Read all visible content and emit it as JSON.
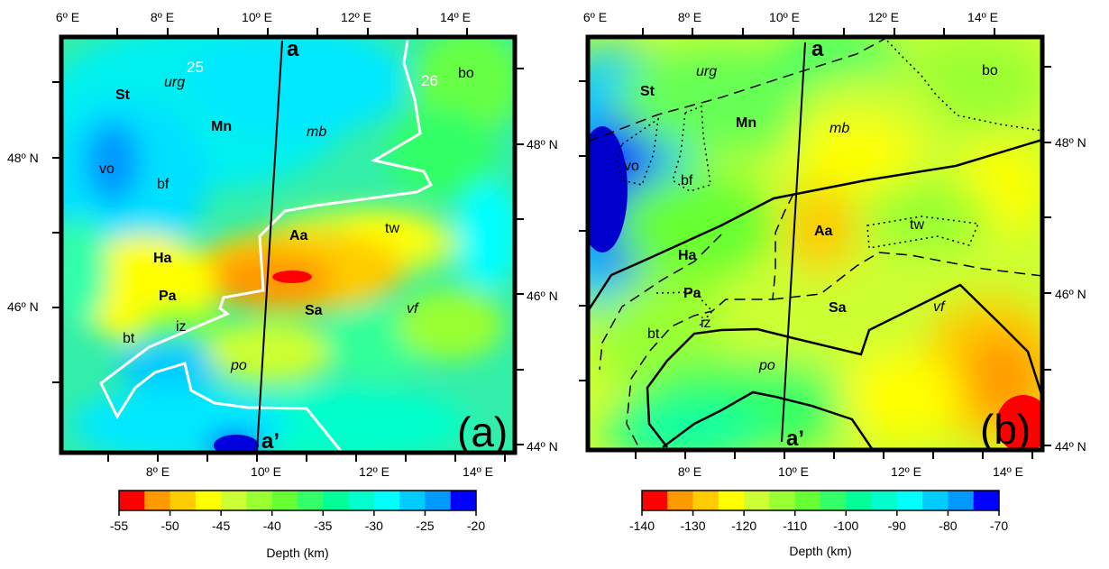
{
  "panels": [
    {
      "id": "a",
      "panel_label": "(a)",
      "lon_ticks_top": [
        "6º E",
        "8º E",
        "10º E",
        "12º E",
        "14º E"
      ],
      "lon_ticks_bottom": [
        "8º E",
        "10º E",
        "12º E",
        "14º E"
      ],
      "lat_ticks": [
        "48º N",
        "46º N",
        "44º N"
      ],
      "profile_start": "a",
      "profile_end": "a’",
      "contour_labels": [
        "25",
        "26"
      ],
      "region_labels": {
        "St": "St",
        "urg": "urg",
        "Mn": "Mn",
        "mb": "mb",
        "bo": "bo",
        "vo": "vo",
        "bf": "bf",
        "tw": "tw",
        "Aa": "Aa",
        "Ha": "Ha",
        "Pa": "Pa",
        "Sa": "Sa",
        "vf": "vf",
        "iz": "iz",
        "bt": "bt",
        "po": "po"
      },
      "colorbar": {
        "labels": [
          "-55",
          "-50",
          "-45",
          "-40",
          "-35",
          "-30",
          "-25",
          "-20"
        ],
        "title": "Depth (km)",
        "colors": [
          "#ff0000",
          "#ff9900",
          "#ffcc00",
          "#ffff00",
          "#ccff33",
          "#99ff33",
          "#66ff33",
          "#33ff66",
          "#00ff99",
          "#00ffcc",
          "#00ffff",
          "#00ccff",
          "#0099ff",
          "#0000ff"
        ]
      }
    },
    {
      "id": "b",
      "panel_label": "(b)",
      "lon_ticks_top": [
        "6º E",
        "8º E",
        "10º E",
        "12º E",
        "14º E"
      ],
      "lon_ticks_bottom": [
        "8º E",
        "10º E",
        "12º E",
        "14º E"
      ],
      "lat_ticks": [
        "48º N",
        "46º N",
        "44º N"
      ],
      "profile_start": "a",
      "profile_end": "a’",
      "region_labels": {
        "St": "St",
        "urg": "urg",
        "Mn": "Mn",
        "mb": "mb",
        "bo": "bo",
        "vo": "vo",
        "bf": "bf",
        "tw": "tw",
        "Aa": "Aa",
        "Ha": "Ha",
        "Pa": "Pa",
        "Sa": "Sa",
        "vf": "vf",
        "iz": "iz",
        "bt": "bt",
        "po": "po"
      },
      "colorbar": {
        "labels": [
          "-140",
          "-130",
          "-120",
          "-110",
          "-100",
          "-90",
          "-80",
          "-70"
        ],
        "title": "Depth (km)",
        "colors": [
          "#ff0000",
          "#ff9900",
          "#ffcc00",
          "#ffff00",
          "#ccff33",
          "#99ff33",
          "#66ff33",
          "#33ff66",
          "#00ff99",
          "#00ffcc",
          "#00ffff",
          "#00ccff",
          "#0099ff",
          "#0000ff"
        ]
      }
    }
  ]
}
